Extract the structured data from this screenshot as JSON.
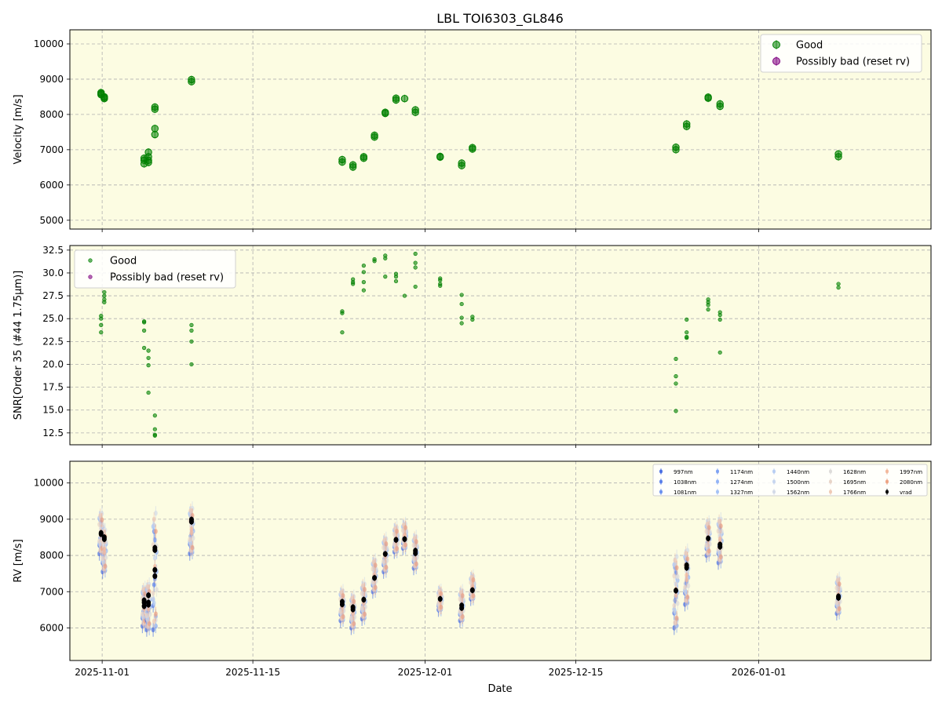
{
  "title": "LBL TOI6303_GL846",
  "xlabel": "Date",
  "x_tick_labels": [
    "2025-11-01",
    "2025-11-15",
    "2025-12-01",
    "2025-12-15",
    "2026-01-01"
  ],
  "colors": {
    "panel_bg": "#fcfce2",
    "good": "#008000",
    "possibly_bad": "#800080",
    "grid": "#b0b0b0",
    "vrad": "#000000"
  },
  "chart_data": [
    {
      "type": "scatter",
      "panel": "velocity",
      "ylabel": "Velocity [m/s]",
      "ylim": [
        4750,
        10400
      ],
      "yticks": [
        5000,
        6000,
        7000,
        8000,
        9000,
        10000
      ],
      "xlim": [
        "2025-10-29",
        "2026-01-17"
      ],
      "xticks": [
        "2025-11-01",
        "2025-11-15",
        "2025-12-01",
        "2025-12-15",
        "2026-01-01"
      ],
      "grid": true,
      "legend_position": "top-right",
      "legend": [
        "Good",
        "Possibly bad (reset rv)"
      ],
      "series": [
        {
          "name": "Good",
          "color": "#008000",
          "points": [
            [
              "2025-10-31.9",
              8560
            ],
            [
              "2025-10-31.9",
              8620
            ],
            [
              "2025-10-31.9",
              8590
            ],
            [
              "2025-11-01.2",
              8450
            ],
            [
              "2025-11-01.2",
              8500
            ],
            [
              "2025-11-01.2",
              8480
            ],
            [
              "2025-11-04.9",
              6600
            ],
            [
              "2025-11-04.9",
              6700
            ],
            [
              "2025-11-04.9",
              6760
            ],
            [
              "2025-11-05.3",
              6640
            ],
            [
              "2025-11-05.3",
              6700
            ],
            [
              "2025-11-05.3",
              6800
            ],
            [
              "2025-11-05.3",
              6930
            ],
            [
              "2025-11-05.9",
              7430
            ],
            [
              "2025-11-05.9",
              7600
            ],
            [
              "2025-11-05.9",
              8150
            ],
            [
              "2025-11-05.9",
              8210
            ],
            [
              "2025-11-09.3",
              8930
            ],
            [
              "2025-11-09.3",
              8990
            ],
            [
              "2025-11-23.3",
              6650
            ],
            [
              "2025-11-23.3",
              6720
            ],
            [
              "2025-11-24.3",
              6510
            ],
            [
              "2025-11-24.3",
              6570
            ],
            [
              "2025-11-25.3",
              6760
            ],
            [
              "2025-11-25.3",
              6800
            ],
            [
              "2025-11-26.3",
              7360
            ],
            [
              "2025-11-26.3",
              7410
            ],
            [
              "2025-11-27.3",
              8030
            ],
            [
              "2025-11-27.3",
              8060
            ],
            [
              "2025-11-28.3",
              8410
            ],
            [
              "2025-11-28.3",
              8460
            ],
            [
              "2025-11-29.1",
              8450
            ],
            [
              "2025-11-30.1",
              8060
            ],
            [
              "2025-11-30.1",
              8130
            ],
            [
              "2025-12-02.4",
              6790
            ],
            [
              "2025-12-02.4",
              6810
            ],
            [
              "2025-12-04.4",
              6550
            ],
            [
              "2025-12-04.4",
              6620
            ],
            [
              "2025-12-05.4",
              7020
            ],
            [
              "2025-12-05.4",
              7060
            ],
            [
              "2025-12-24.3",
              7000
            ],
            [
              "2025-12-24.3",
              7070
            ],
            [
              "2025-12-25.3",
              7660
            ],
            [
              "2025-12-25.3",
              7730
            ],
            [
              "2025-12-27.3",
              8460
            ],
            [
              "2025-12-27.3",
              8490
            ],
            [
              "2025-12-28.4",
              8230
            ],
            [
              "2025-12-28.4",
              8300
            ],
            [
              "2026-01-08.4",
              6800
            ],
            [
              "2026-01-08.4",
              6880
            ]
          ]
        },
        {
          "name": "Possibly bad (reset rv)",
          "color": "#800080",
          "points": []
        }
      ]
    },
    {
      "type": "scatter",
      "panel": "snr",
      "ylabel": "SNR[Order 35 (#44 1.75μm)]",
      "ylim": [
        11.2,
        33.0
      ],
      "yticks": [
        12.5,
        15.0,
        17.5,
        20.0,
        22.5,
        25.0,
        27.5,
        30.0,
        32.5
      ],
      "ytick_labels": [
        "12.5",
        "15.0",
        "17.5",
        "20.0",
        "22.5",
        "25.0",
        "27.5",
        "30.0",
        "32.5"
      ],
      "xlim": [
        "2025-10-29",
        "2026-01-17"
      ],
      "grid": true,
      "legend_position": "top-left",
      "legend": [
        "Good",
        "Possibly bad (reset rv)"
      ],
      "series": [
        {
          "name": "Good",
          "color": "#008000",
          "points": [
            [
              "2025-10-31.9",
              25.3
            ],
            [
              "2025-10-31.9",
              25.0
            ],
            [
              "2025-10-31.9",
              24.3
            ],
            [
              "2025-10-31.9",
              23.5
            ],
            [
              "2025-11-01.2",
              27.9
            ],
            [
              "2025-11-01.2",
              27.5
            ],
            [
              "2025-11-01.2",
              27.1
            ],
            [
              "2025-11-01.2",
              26.8
            ],
            [
              "2025-11-04.9",
              24.7
            ],
            [
              "2025-11-04.9",
              24.6
            ],
            [
              "2025-11-04.9",
              23.7
            ],
            [
              "2025-11-04.9",
              21.8
            ],
            [
              "2025-11-05.3",
              21.5
            ],
            [
              "2025-11-05.3",
              20.7
            ],
            [
              "2025-11-05.3",
              19.9
            ],
            [
              "2025-11-05.3",
              16.9
            ],
            [
              "2025-11-05.9",
              14.4
            ],
            [
              "2025-11-05.9",
              12.9
            ],
            [
              "2025-11-05.9",
              12.3
            ],
            [
              "2025-11-05.9",
              12.2
            ],
            [
              "2025-11-09.3",
              24.3
            ],
            [
              "2025-11-09.3",
              23.7
            ],
            [
              "2025-11-09.3",
              22.5
            ],
            [
              "2025-11-09.3",
              20.0
            ],
            [
              "2025-11-23.3",
              25.8
            ],
            [
              "2025-11-23.3",
              25.6
            ],
            [
              "2025-11-23.3",
              23.5
            ],
            [
              "2025-11-24.3",
              29.3
            ],
            [
              "2025-11-24.3",
              29.0
            ],
            [
              "2025-11-24.3",
              28.8
            ],
            [
              "2025-11-25.3",
              30.8
            ],
            [
              "2025-11-25.3",
              30.1
            ],
            [
              "2025-11-25.3",
              29.0
            ],
            [
              "2025-11-25.3",
              28.1
            ],
            [
              "2025-11-26.3",
              31.5
            ],
            [
              "2025-11-26.3",
              31.3
            ],
            [
              "2025-11-27.3",
              31.9
            ],
            [
              "2025-11-27.3",
              31.6
            ],
            [
              "2025-11-27.3",
              29.6
            ],
            [
              "2025-11-28.3",
              29.9
            ],
            [
              "2025-11-28.3",
              29.6
            ],
            [
              "2025-11-28.3",
              29.1
            ],
            [
              "2025-11-29.1",
              27.5
            ],
            [
              "2025-11-30.1",
              32.1
            ],
            [
              "2025-11-30.1",
              31.1
            ],
            [
              "2025-11-30.1",
              30.6
            ],
            [
              "2025-11-30.1",
              28.5
            ],
            [
              "2025-12-02.4",
              29.4
            ],
            [
              "2025-12-02.4",
              29.2
            ],
            [
              "2025-12-02.4",
              28.8
            ],
            [
              "2025-12-02.4",
              28.6
            ],
            [
              "2025-12-04.4",
              27.6
            ],
            [
              "2025-12-04.4",
              26.6
            ],
            [
              "2025-12-04.4",
              25.1
            ],
            [
              "2025-12-04.4",
              24.5
            ],
            [
              "2025-12-05.4",
              25.2
            ],
            [
              "2025-12-05.4",
              24.9
            ],
            [
              "2025-12-24.3",
              20.6
            ],
            [
              "2025-12-24.3",
              18.7
            ],
            [
              "2025-12-24.3",
              17.9
            ],
            [
              "2025-12-24.3",
              14.9
            ],
            [
              "2025-12-25.3",
              24.9
            ],
            [
              "2025-12-25.3",
              23.5
            ],
            [
              "2025-12-25.3",
              23.0
            ],
            [
              "2025-12-25.3",
              22.9
            ],
            [
              "2025-12-27.3",
              27.1
            ],
            [
              "2025-12-27.3",
              26.8
            ],
            [
              "2025-12-27.3",
              26.5
            ],
            [
              "2025-12-27.3",
              26.0
            ],
            [
              "2025-12-28.4",
              25.7
            ],
            [
              "2025-12-28.4",
              25.4
            ],
            [
              "2025-12-28.4",
              24.9
            ],
            [
              "2025-12-28.4",
              21.3
            ],
            [
              "2026-01-08.4",
              28.8
            ],
            [
              "2026-01-08.4",
              28.4
            ]
          ]
        },
        {
          "name": "Possibly bad (reset rv)",
          "color": "#800080",
          "points": []
        }
      ]
    },
    {
      "type": "scatter",
      "panel": "rv",
      "ylabel": "RV [m/s]",
      "ylim": [
        5100,
        10600
      ],
      "yticks": [
        6000,
        7000,
        8000,
        9000,
        10000
      ],
      "xlim": [
        "2025-10-29",
        "2026-01-17"
      ],
      "grid": true,
      "legend_position": "top-right",
      "legend": [
        "997nm",
        "1038nm",
        "1081nm",
        "1174nm",
        "1274nm",
        "1327nm",
        "1440nm",
        "1500nm",
        "1562nm",
        "1628nm",
        "1695nm",
        "1766nm",
        "1997nm",
        "2080nm",
        "vrad"
      ],
      "wavelength_colors": {
        "997nm": "#4a6fe3",
        "1038nm": "#5a80ea",
        "1081nm": "#6b91ef",
        "1174nm": "#7ea2f3",
        "1274nm": "#92b3f6",
        "1327nm": "#a5c2f6",
        "1440nm": "#b8cef3",
        "1500nm": "#c7d6ef",
        "1562nm": "#d4dbe8",
        "1628nm": "#dedcda",
        "1695nm": "#e8d4c8",
        "1766nm": "#efcab6",
        "1997nm": "#f2b89c",
        "2080nm": "#eda384",
        "vrad": "#000000"
      },
      "vrad": [
        [
          "2025-10-31.9",
          8590,
          60
        ],
        [
          "2025-10-31.9",
          8620,
          60
        ],
        [
          "2025-11-01.2",
          8450,
          60
        ],
        [
          "2025-11-01.2",
          8500,
          60
        ],
        [
          "2025-11-04.9",
          6600,
          60
        ],
        [
          "2025-11-04.9",
          6700,
          60
        ],
        [
          "2025-11-04.9",
          6760,
          60
        ],
        [
          "2025-11-05.3",
          6640,
          60
        ],
        [
          "2025-11-05.3",
          6700,
          60
        ],
        [
          "2025-11-05.3",
          6900,
          60
        ],
        [
          "2025-11-05.9",
          7430,
          60
        ],
        [
          "2025-11-05.9",
          7600,
          60
        ],
        [
          "2025-11-05.9",
          8150,
          60
        ],
        [
          "2025-11-05.9",
          8210,
          60
        ],
        [
          "2025-11-09.3",
          8930,
          60
        ],
        [
          "2025-11-09.3",
          8990,
          60
        ],
        [
          "2025-11-23.3",
          6650,
          60
        ],
        [
          "2025-11-23.3",
          6720,
          60
        ],
        [
          "2025-11-24.3",
          6510,
          60
        ],
        [
          "2025-11-24.3",
          6570,
          60
        ],
        [
          "2025-11-25.3",
          6780,
          60
        ],
        [
          "2025-11-26.3",
          7380,
          60
        ],
        [
          "2025-11-27.3",
          8040,
          60
        ],
        [
          "2025-11-28.3",
          8430,
          60
        ],
        [
          "2025-11-29.1",
          8450,
          60
        ],
        [
          "2025-11-30.1",
          8060,
          60
        ],
        [
          "2025-11-30.1",
          8130,
          60
        ],
        [
          "2025-12-02.4",
          6800,
          60
        ],
        [
          "2025-12-04.4",
          6550,
          60
        ],
        [
          "2025-12-04.4",
          6620,
          60
        ],
        [
          "2025-12-05.4",
          7040,
          60
        ],
        [
          "2025-12-24.3",
          7030,
          60
        ],
        [
          "2025-12-25.3",
          7660,
          60
        ],
        [
          "2025-12-25.3",
          7730,
          60
        ],
        [
          "2025-12-27.3",
          8470,
          60
        ],
        [
          "2025-12-28.4",
          8240,
          60
        ],
        [
          "2025-12-28.4",
          8300,
          60
        ],
        [
          "2026-01-08.4",
          6830,
          60
        ],
        [
          "2026-01-08.4",
          6870,
          60
        ]
      ],
      "per_wavelength_spread_ms": [
        [
          "2025-10-31.9",
          8050,
          9200
        ],
        [
          "2025-11-01.2",
          7550,
          8750
        ],
        [
          "2025-11-04.9",
          6050,
          7150
        ],
        [
          "2025-11-05.3",
          5950,
          7250
        ],
        [
          "2025-11-05.9",
          5950,
          9300
        ],
        [
          "2025-11-09.3",
          8050,
          9350
        ],
        [
          "2025-11-23.3",
          6200,
          7050
        ],
        [
          "2025-11-24.3",
          6000,
          6900
        ],
        [
          "2025-11-25.3",
          6250,
          7250
        ],
        [
          "2025-11-26.3",
          7000,
          7900
        ],
        [
          "2025-11-27.3",
          7550,
          8500
        ],
        [
          "2025-11-28.3",
          8100,
          8800
        ],
        [
          "2025-11-29.1",
          8200,
          8900
        ],
        [
          "2025-11-30.1",
          7650,
          8550
        ],
        [
          "2025-12-02.4",
          6500,
          7050
        ],
        [
          "2025-12-04.4",
          6200,
          7050
        ],
        [
          "2025-12-05.4",
          6800,
          7450
        ],
        [
          "2025-12-24.3",
          6000,
          8050
        ],
        [
          "2025-12-25.3",
          6650,
          8200
        ],
        [
          "2025-12-27.3",
          8000,
          8950
        ],
        [
          "2025-12-28.4",
          7800,
          9050
        ],
        [
          "2026-01-08.4",
          6400,
          7400
        ]
      ]
    }
  ]
}
